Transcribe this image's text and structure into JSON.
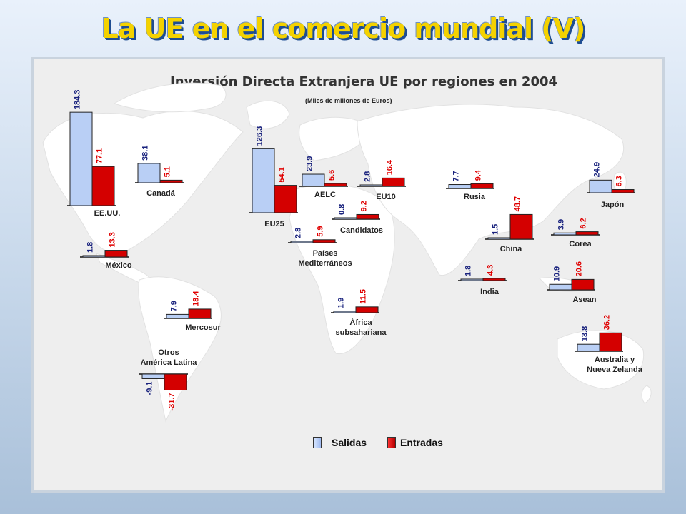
{
  "slide_title": "La UE en el comercio mundial (V)",
  "colors": {
    "salidas": "#b9cff5",
    "entradas": "#d40000",
    "salidas_label": "#1a237e",
    "entradas_label": "#e00000"
  },
  "legend": {
    "salidas": "Salidas",
    "entradas": "Entradas"
  },
  "chart_data": {
    "type": "bar",
    "title": "Inversión Directa Extranjera UE por regiones en 2004",
    "subtitle": "(Miles de millones de Euros)",
    "series_names": [
      "Salidas",
      "Entradas"
    ],
    "regions": [
      {
        "name": "EE.UU.",
        "salidas": 184.3,
        "entradas": 77.1
      },
      {
        "name": "Canadá",
        "salidas": 38.1,
        "entradas": 5.1
      },
      {
        "name": "México",
        "salidas": 1.8,
        "entradas": 13.3
      },
      {
        "name": "Mercosur",
        "salidas": 7.9,
        "entradas": 18.4
      },
      {
        "name": "Otros América Latina",
        "salidas": -9.1,
        "entradas": -31.7
      },
      {
        "name": "EU25",
        "salidas": 126.3,
        "entradas": 54.1
      },
      {
        "name": "AELC",
        "salidas": 23.9,
        "entradas": 5.6
      },
      {
        "name": "EU10",
        "salidas": 2.8,
        "entradas": 16.4
      },
      {
        "name": "Candidatos",
        "salidas": 0.8,
        "entradas": 9.2
      },
      {
        "name": "Países Mediterráneos",
        "salidas": 2.8,
        "entradas": 5.9
      },
      {
        "name": "África subsahariana",
        "salidas": 1.9,
        "entradas": 11.5
      },
      {
        "name": "Rusia",
        "salidas": 7.7,
        "entradas": 9.4
      },
      {
        "name": "China",
        "salidas": 1.5,
        "entradas": 48.7
      },
      {
        "name": "India",
        "salidas": 1.8,
        "entradas": 4.3
      },
      {
        "name": "Japón",
        "salidas": 24.9,
        "entradas": 6.3
      },
      {
        "name": "Corea",
        "salidas": 3.9,
        "entradas": 6.2
      },
      {
        "name": "Asean",
        "salidas": 10.9,
        "entradas": 20.6
      },
      {
        "name": "Australia y Nueva Zelanda",
        "salidas": 13.8,
        "entradas": 36.2
      }
    ]
  }
}
